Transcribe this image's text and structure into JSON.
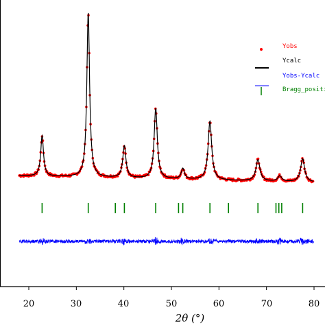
{
  "chart_data": {
    "type": "line",
    "xlabel": "2θ (°)",
    "ylabel": "",
    "xlim": [
      16,
      82
    ],
    "ylim": [
      -600,
      9000
    ],
    "x_ticks": [
      20,
      30,
      40,
      50,
      60,
      70,
      80
    ],
    "legend_position": "top-right",
    "grid": false,
    "series": [
      {
        "name": "Yobs",
        "style": "points",
        "color": "#ff0000"
      },
      {
        "name": "Ycalc",
        "style": "line",
        "color": "#000000"
      },
      {
        "name": "Yobs-Ycalc",
        "style": "line",
        "color": "#0000ff"
      },
      {
        "name": "Bragg_position",
        "style": "ticks",
        "color": "#008000"
      }
    ],
    "baseline": 1400,
    "peaks": [
      {
        "pos": 22.8,
        "height": 1900,
        "width": 0.35
      },
      {
        "pos": 32.5,
        "height": 7700,
        "width": 0.35
      },
      {
        "pos": 40.1,
        "height": 1500,
        "width": 0.4
      },
      {
        "pos": 46.7,
        "height": 3300,
        "width": 0.4
      },
      {
        "pos": 52.4,
        "height": 500,
        "width": 0.4
      },
      {
        "pos": 58.1,
        "height": 2750,
        "width": 0.45
      },
      {
        "pos": 68.2,
        "height": 1000,
        "width": 0.5
      },
      {
        "pos": 72.8,
        "height": 260,
        "width": 0.5
      },
      {
        "pos": 77.6,
        "height": 1100,
        "width": 0.5
      }
    ],
    "bragg_positions": [
      22.8,
      32.5,
      38.2,
      40.1,
      46.7,
      51.5,
      52.4,
      58.1,
      62.0,
      68.2,
      72.0,
      72.6,
      73.2,
      77.6
    ],
    "difference_offset": -1350,
    "bragg_row": 300
  },
  "legend": {
    "yobs": "Yobs",
    "ycalc": "Ycalc",
    "diff": "Yobs-Ycalc",
    "bragg": "Bragg_position"
  },
  "axis": {
    "xlabel": "2θ (°)",
    "tick_20": "20",
    "tick_30": "30",
    "tick_40": "40",
    "tick_50": "50",
    "tick_60": "60",
    "tick_70": "70",
    "tick_80": "80"
  }
}
